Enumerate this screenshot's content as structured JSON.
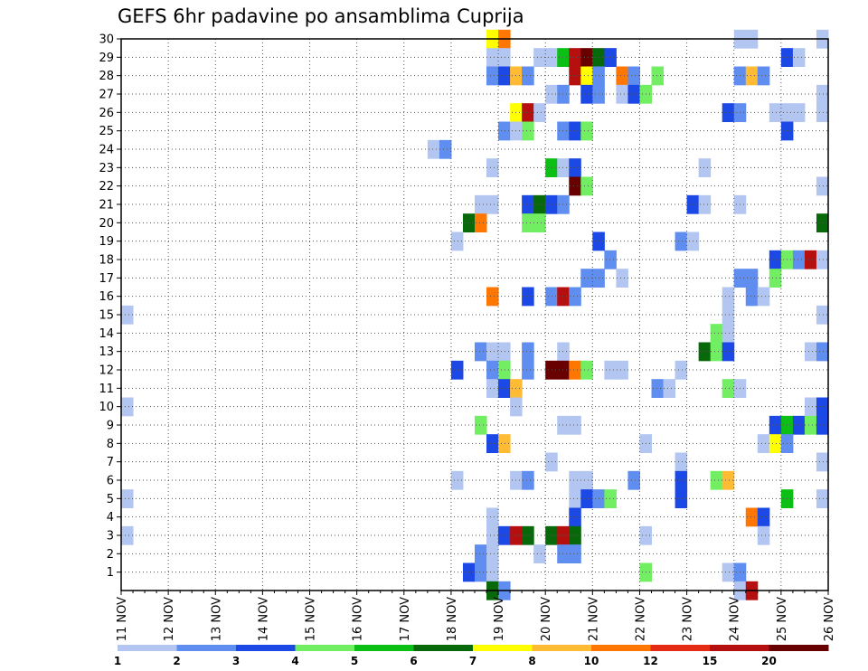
{
  "chart_data": {
    "type": "heatmap",
    "title": "GEFS 6hr padavine po ansamblima Cuprija",
    "xlabel": "",
    "ylabel": "",
    "x_tick_labels": [
      "11 NOV",
      "12 NOV",
      "13 NOV",
      "14 NOV",
      "15 NOV",
      "16 NOV",
      "17 NOV",
      "18 NOV",
      "19 NOV",
      "20 NOV",
      "21 NOV",
      "22 NOV",
      "23 NOV",
      "24 NOV",
      "25 NOV",
      "26 NOV"
    ],
    "y_tick_labels": [
      "1",
      "2",
      "3",
      "4",
      "5",
      "6",
      "7",
      "8",
      "9",
      "10",
      "11",
      "12",
      "13",
      "14",
      "15",
      "16",
      "17",
      "18",
      "19",
      "20",
      "21",
      "22",
      "23",
      "24",
      "25",
      "26",
      "27",
      "28",
      "29",
      "30"
    ],
    "xlim": [
      0,
      60
    ],
    "ylim": [
      0,
      30
    ],
    "x_unit": "6-hour step from 11 NOV 00Z",
    "grid": true,
    "legend_labels": [
      "1",
      "2",
      "3",
      "4",
      "5",
      "6",
      "7",
      "8",
      "10",
      "12",
      "15",
      "20"
    ],
    "levels": [
      1,
      2,
      3,
      4,
      5,
      6,
      7,
      8,
      10,
      12,
      15,
      20
    ],
    "colors": [
      "#b3c6f2",
      "#5f8df0",
      "#1c48e6",
      "#72ee63",
      "#0cbf15",
      "#08690a",
      "#ffff00",
      "#ffbb33",
      "#ff7700",
      "#e62b14",
      "#b60f0f",
      "#690000"
    ],
    "cells": [
      {
        "x": 31,
        "y": 30,
        "v": 7
      },
      {
        "x": 32,
        "y": 30,
        "v": 10
      },
      {
        "x": 52,
        "y": 30,
        "v": 1
      },
      {
        "x": 53,
        "y": 30,
        "v": 1
      },
      {
        "x": 59,
        "y": 30,
        "v": 1
      },
      {
        "x": 31,
        "y": 29,
        "v": 1
      },
      {
        "x": 32,
        "y": 29,
        "v": 1
      },
      {
        "x": 35,
        "y": 29,
        "v": 1
      },
      {
        "x": 36,
        "y": 29,
        "v": 1
      },
      {
        "x": 37,
        "y": 29,
        "v": 5
      },
      {
        "x": 38,
        "y": 29,
        "v": 15
      },
      {
        "x": 39,
        "y": 29,
        "v": 20
      },
      {
        "x": 40,
        "y": 29,
        "v": 6
      },
      {
        "x": 41,
        "y": 29,
        "v": 3
      },
      {
        "x": 56,
        "y": 29,
        "v": 3
      },
      {
        "x": 57,
        "y": 29,
        "v": 1
      },
      {
        "x": 31,
        "y": 28,
        "v": 2
      },
      {
        "x": 32,
        "y": 28,
        "v": 3
      },
      {
        "x": 33,
        "y": 28,
        "v": 8
      },
      {
        "x": 34,
        "y": 28,
        "v": 2
      },
      {
        "x": 38,
        "y": 28,
        "v": 15
      },
      {
        "x": 39,
        "y": 28,
        "v": 7
      },
      {
        "x": 40,
        "y": 28,
        "v": 2
      },
      {
        "x": 42,
        "y": 28,
        "v": 10
      },
      {
        "x": 43,
        "y": 28,
        "v": 2
      },
      {
        "x": 45,
        "y": 28,
        "v": 4
      },
      {
        "x": 52,
        "y": 28,
        "v": 2
      },
      {
        "x": 53,
        "y": 28,
        "v": 8
      },
      {
        "x": 54,
        "y": 28,
        "v": 2
      },
      {
        "x": 36,
        "y": 27,
        "v": 1
      },
      {
        "x": 37,
        "y": 27,
        "v": 2
      },
      {
        "x": 39,
        "y": 27,
        "v": 3
      },
      {
        "x": 40,
        "y": 27,
        "v": 2
      },
      {
        "x": 42,
        "y": 27,
        "v": 1
      },
      {
        "x": 43,
        "y": 27,
        "v": 3
      },
      {
        "x": 44,
        "y": 27,
        "v": 4
      },
      {
        "x": 59,
        "y": 27,
        "v": 1
      },
      {
        "x": 33,
        "y": 26,
        "v": 7
      },
      {
        "x": 34,
        "y": 26,
        "v": 15
      },
      {
        "x": 35,
        "y": 26,
        "v": 1
      },
      {
        "x": 51,
        "y": 26,
        "v": 3
      },
      {
        "x": 52,
        "y": 26,
        "v": 2
      },
      {
        "x": 55,
        "y": 26,
        "v": 1
      },
      {
        "x": 56,
        "y": 26,
        "v": 1
      },
      {
        "x": 57,
        "y": 26,
        "v": 1
      },
      {
        "x": 59,
        "y": 26,
        "v": 1
      },
      {
        "x": 32,
        "y": 25,
        "v": 2
      },
      {
        "x": 33,
        "y": 25,
        "v": 1
      },
      {
        "x": 34,
        "y": 25,
        "v": 4
      },
      {
        "x": 37,
        "y": 25,
        "v": 2
      },
      {
        "x": 38,
        "y": 25,
        "v": 3
      },
      {
        "x": 39,
        "y": 25,
        "v": 4
      },
      {
        "x": 56,
        "y": 25,
        "v": 3
      },
      {
        "x": 26,
        "y": 24,
        "v": 1
      },
      {
        "x": 27,
        "y": 24,
        "v": 2
      },
      {
        "x": 31,
        "y": 23,
        "v": 1
      },
      {
        "x": 36,
        "y": 23,
        "v": 5
      },
      {
        "x": 37,
        "y": 23,
        "v": 1
      },
      {
        "x": 38,
        "y": 23,
        "v": 3
      },
      {
        "x": 49,
        "y": 23,
        "v": 1
      },
      {
        "x": 38,
        "y": 22,
        "v": 20
      },
      {
        "x": 39,
        "y": 22,
        "v": 4
      },
      {
        "x": 59,
        "y": 22,
        "v": 1
      },
      {
        "x": 30,
        "y": 21,
        "v": 1
      },
      {
        "x": 31,
        "y": 21,
        "v": 1
      },
      {
        "x": 34,
        "y": 21,
        "v": 3
      },
      {
        "x": 35,
        "y": 21,
        "v": 6
      },
      {
        "x": 36,
        "y": 21,
        "v": 3
      },
      {
        "x": 37,
        "y": 21,
        "v": 2
      },
      {
        "x": 48,
        "y": 21,
        "v": 3
      },
      {
        "x": 49,
        "y": 21,
        "v": 1
      },
      {
        "x": 52,
        "y": 21,
        "v": 1
      },
      {
        "x": 29,
        "y": 20,
        "v": 6
      },
      {
        "x": 30,
        "y": 20,
        "v": 10
      },
      {
        "x": 34,
        "y": 20,
        "v": 4
      },
      {
        "x": 35,
        "y": 20,
        "v": 4
      },
      {
        "x": 59,
        "y": 20,
        "v": 6
      },
      {
        "x": 28,
        "y": 19,
        "v": 1
      },
      {
        "x": 40,
        "y": 19,
        "v": 3
      },
      {
        "x": 47,
        "y": 19,
        "v": 2
      },
      {
        "x": 48,
        "y": 19,
        "v": 1
      },
      {
        "x": 41,
        "y": 18,
        "v": 2
      },
      {
        "x": 55,
        "y": 18,
        "v": 3
      },
      {
        "x": 56,
        "y": 18,
        "v": 4
      },
      {
        "x": 57,
        "y": 18,
        "v": 2
      },
      {
        "x": 58,
        "y": 18,
        "v": 15
      },
      {
        "x": 59,
        "y": 18,
        "v": 1
      },
      {
        "x": 39,
        "y": 17,
        "v": 2
      },
      {
        "x": 40,
        "y": 17,
        "v": 2
      },
      {
        "x": 42,
        "y": 17,
        "v": 1
      },
      {
        "x": 52,
        "y": 17,
        "v": 2
      },
      {
        "x": 53,
        "y": 17,
        "v": 2
      },
      {
        "x": 55,
        "y": 17,
        "v": 4
      },
      {
        "x": 31,
        "y": 16,
        "v": 10
      },
      {
        "x": 34,
        "y": 16,
        "v": 3
      },
      {
        "x": 36,
        "y": 16,
        "v": 2
      },
      {
        "x": 37,
        "y": 16,
        "v": 15
      },
      {
        "x": 38,
        "y": 16,
        "v": 2
      },
      {
        "x": 51,
        "y": 16,
        "v": 1
      },
      {
        "x": 53,
        "y": 16,
        "v": 2
      },
      {
        "x": 54,
        "y": 16,
        "v": 1
      },
      {
        "x": 0,
        "y": 15,
        "v": 1
      },
      {
        "x": 51,
        "y": 15,
        "v": 1
      },
      {
        "x": 59,
        "y": 15,
        "v": 1
      },
      {
        "x": 50,
        "y": 14,
        "v": 4
      },
      {
        "x": 51,
        "y": 14,
        "v": 1
      },
      {
        "x": 30,
        "y": 13,
        "v": 2
      },
      {
        "x": 31,
        "y": 13,
        "v": 1
      },
      {
        "x": 32,
        "y": 13,
        "v": 1
      },
      {
        "x": 34,
        "y": 13,
        "v": 2
      },
      {
        "x": 37,
        "y": 13,
        "v": 1
      },
      {
        "x": 49,
        "y": 13,
        "v": 6
      },
      {
        "x": 50,
        "y": 13,
        "v": 4
      },
      {
        "x": 51,
        "y": 13,
        "v": 3
      },
      {
        "x": 58,
        "y": 13,
        "v": 1
      },
      {
        "x": 59,
        "y": 13,
        "v": 2
      },
      {
        "x": 28,
        "y": 12,
        "v": 3
      },
      {
        "x": 31,
        "y": 12,
        "v": 2
      },
      {
        "x": 32,
        "y": 12,
        "v": 4
      },
      {
        "x": 34,
        "y": 12,
        "v": 2
      },
      {
        "x": 36,
        "y": 12,
        "v": 20
      },
      {
        "x": 37,
        "y": 12,
        "v": 20
      },
      {
        "x": 38,
        "y": 12,
        "v": 10
      },
      {
        "x": 39,
        "y": 12,
        "v": 4
      },
      {
        "x": 41,
        "y": 12,
        "v": 1
      },
      {
        "x": 42,
        "y": 12,
        "v": 1
      },
      {
        "x": 47,
        "y": 12,
        "v": 1
      },
      {
        "x": 31,
        "y": 11,
        "v": 1
      },
      {
        "x": 32,
        "y": 11,
        "v": 3
      },
      {
        "x": 33,
        "y": 11,
        "v": 8
      },
      {
        "x": 45,
        "y": 11,
        "v": 2
      },
      {
        "x": 46,
        "y": 11,
        "v": 1
      },
      {
        "x": 51,
        "y": 11,
        "v": 4
      },
      {
        "x": 52,
        "y": 11,
        "v": 1
      },
      {
        "x": 0,
        "y": 10,
        "v": 1
      },
      {
        "x": 33,
        "y": 10,
        "v": 1
      },
      {
        "x": 58,
        "y": 10,
        "v": 1
      },
      {
        "x": 59,
        "y": 10,
        "v": 3
      },
      {
        "x": 30,
        "y": 9,
        "v": 4
      },
      {
        "x": 37,
        "y": 9,
        "v": 1
      },
      {
        "x": 38,
        "y": 9,
        "v": 1
      },
      {
        "x": 55,
        "y": 9,
        "v": 3
      },
      {
        "x": 56,
        "y": 9,
        "v": 5
      },
      {
        "x": 57,
        "y": 9,
        "v": 3
      },
      {
        "x": 58,
        "y": 9,
        "v": 4
      },
      {
        "x": 59,
        "y": 9,
        "v": 3
      },
      {
        "x": 31,
        "y": 8,
        "v": 3
      },
      {
        "x": 32,
        "y": 8,
        "v": 8
      },
      {
        "x": 44,
        "y": 8,
        "v": 1
      },
      {
        "x": 54,
        "y": 8,
        "v": 1
      },
      {
        "x": 55,
        "y": 8,
        "v": 7
      },
      {
        "x": 56,
        "y": 8,
        "v": 2
      },
      {
        "x": 36,
        "y": 7,
        "v": 1
      },
      {
        "x": 47,
        "y": 7,
        "v": 1
      },
      {
        "x": 59,
        "y": 7,
        "v": 1
      },
      {
        "x": 28,
        "y": 6,
        "v": 1
      },
      {
        "x": 33,
        "y": 6,
        "v": 1
      },
      {
        "x": 34,
        "y": 6,
        "v": 2
      },
      {
        "x": 38,
        "y": 6,
        "v": 1
      },
      {
        "x": 39,
        "y": 6,
        "v": 1
      },
      {
        "x": 43,
        "y": 6,
        "v": 2
      },
      {
        "x": 47,
        "y": 6,
        "v": 3
      },
      {
        "x": 50,
        "y": 6,
        "v": 4
      },
      {
        "x": 51,
        "y": 6,
        "v": 8
      },
      {
        "x": 0,
        "y": 5,
        "v": 1
      },
      {
        "x": 38,
        "y": 5,
        "v": 1
      },
      {
        "x": 39,
        "y": 5,
        "v": 3
      },
      {
        "x": 40,
        "y": 5,
        "v": 2
      },
      {
        "x": 41,
        "y": 5,
        "v": 4
      },
      {
        "x": 47,
        "y": 5,
        "v": 3
      },
      {
        "x": 56,
        "y": 5,
        "v": 5
      },
      {
        "x": 59,
        "y": 5,
        "v": 1
      },
      {
        "x": 31,
        "y": 4,
        "v": 1
      },
      {
        "x": 38,
        "y": 4,
        "v": 3
      },
      {
        "x": 53,
        "y": 4,
        "v": 10
      },
      {
        "x": 54,
        "y": 4,
        "v": 3
      },
      {
        "x": 0,
        "y": 3,
        "v": 1
      },
      {
        "x": 31,
        "y": 3,
        "v": 1
      },
      {
        "x": 32,
        "y": 3,
        "v": 3
      },
      {
        "x": 33,
        "y": 3,
        "v": 15
      },
      {
        "x": 34,
        "y": 3,
        "v": 6
      },
      {
        "x": 36,
        "y": 3,
        "v": 6
      },
      {
        "x": 37,
        "y": 3,
        "v": 15
      },
      {
        "x": 38,
        "y": 3,
        "v": 6
      },
      {
        "x": 44,
        "y": 3,
        "v": 1
      },
      {
        "x": 54,
        "y": 3,
        "v": 1
      },
      {
        "x": 30,
        "y": 2,
        "v": 2
      },
      {
        "x": 31,
        "y": 2,
        "v": 1
      },
      {
        "x": 35,
        "y": 2,
        "v": 1
      },
      {
        "x": 37,
        "y": 2,
        "v": 2
      },
      {
        "x": 38,
        "y": 2,
        "v": 2
      },
      {
        "x": 29,
        "y": 1,
        "v": 3
      },
      {
        "x": 30,
        "y": 1,
        "v": 2
      },
      {
        "x": 31,
        "y": 1,
        "v": 1
      },
      {
        "x": 44,
        "y": 1,
        "v": 4
      },
      {
        "x": 51,
        "y": 1,
        "v": 1
      },
      {
        "x": 52,
        "y": 1,
        "v": 2
      },
      {
        "x": 31,
        "y": 0,
        "v": 6
      },
      {
        "x": 32,
        "y": 0,
        "v": 2
      },
      {
        "x": 52,
        "y": 0,
        "v": 1
      },
      {
        "x": 53,
        "y": 0,
        "v": 15
      }
    ]
  }
}
